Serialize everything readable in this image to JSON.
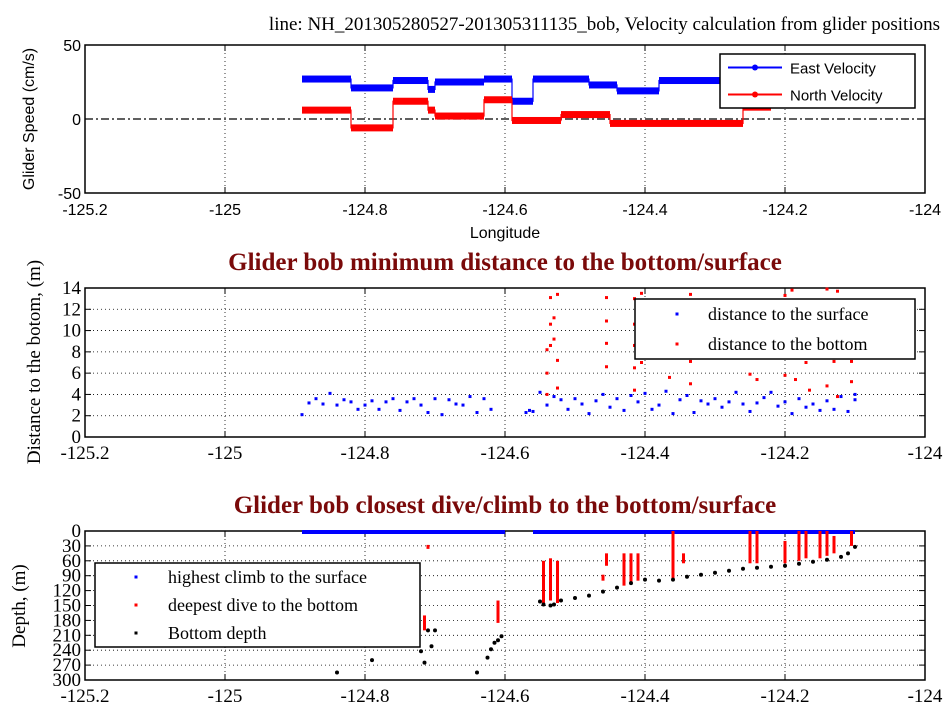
{
  "chart_data": [
    {
      "type": "line",
      "title": "line: NH_201305280527-201305311135_bob, Velocity calculation from glider positions",
      "xlabel": "Longitude",
      "ylabel": "Glider Speed (cm/s)",
      "xlim": [
        -125.2,
        -124
      ],
      "ylim": [
        -50,
        50
      ],
      "xticks": [
        "-125.2",
        "-125",
        "-124.8",
        "-124.6",
        "-124.4",
        "-124.2",
        "-124"
      ],
      "yticks": [
        "-50",
        "0",
        "50"
      ],
      "grid": true,
      "legend_position": "top-right",
      "zero_line": true,
      "series": [
        {
          "name": "East Velocity",
          "color": "#0000ff",
          "steps": [
            [
              -124.89,
              -124.82,
              27
            ],
            [
              -124.82,
              -124.76,
              21
            ],
            [
              -124.76,
              -124.71,
              26
            ],
            [
              -124.71,
              -124.7,
              20
            ],
            [
              -124.7,
              -124.63,
              25
            ],
            [
              -124.63,
              -124.59,
              27
            ],
            [
              -124.59,
              -124.56,
              12
            ],
            [
              -124.56,
              -124.48,
              27
            ],
            [
              -124.48,
              -124.44,
              23
            ],
            [
              -124.44,
              -124.38,
              19
            ],
            [
              -124.38,
              -124.26,
              26
            ]
          ]
        },
        {
          "name": "North Velocity",
          "color": "#ff0000",
          "steps": [
            [
              -124.89,
              -124.82,
              6
            ],
            [
              -124.82,
              -124.76,
              -6
            ],
            [
              -124.76,
              -124.71,
              12
            ],
            [
              -124.71,
              -124.7,
              6
            ],
            [
              -124.7,
              -124.63,
              2
            ],
            [
              -124.63,
              -124.59,
              13
            ],
            [
              -124.59,
              -124.52,
              -1
            ],
            [
              -124.52,
              -124.45,
              3
            ],
            [
              -124.45,
              -124.26,
              -3
            ],
            [
              -124.26,
              -124.22,
              8
            ]
          ]
        }
      ]
    },
    {
      "type": "scatter",
      "title": "Glider bob minimum distance to the bottom/surface",
      "ylabel": "Distance to the botom, (m)",
      "xlim": [
        -125.2,
        -124
      ],
      "ylim": [
        0,
        14
      ],
      "xticks": [
        "-125.2",
        "-125",
        "-124.8",
        "-124.6",
        "-124.4",
        "-124.2",
        "-124"
      ],
      "yticks": [
        "0",
        "2",
        "4",
        "6",
        "8",
        "10",
        "12",
        "14"
      ],
      "grid": true,
      "legend_position": "top-right",
      "series": [
        {
          "name": "distance to the surface",
          "color": "#0000ff",
          "points": [
            [
              -124.89,
              2.1
            ],
            [
              -124.88,
              3.2
            ],
            [
              -124.87,
              3.6
            ],
            [
              -124.86,
              3.1
            ],
            [
              -124.85,
              4.1
            ],
            [
              -124.84,
              3.0
            ],
            [
              -124.83,
              3.5
            ],
            [
              -124.82,
              3.3
            ],
            [
              -124.81,
              2.6
            ],
            [
              -124.8,
              3.0
            ],
            [
              -124.79,
              3.4
            ],
            [
              -124.78,
              2.6
            ],
            [
              -124.77,
              3.3
            ],
            [
              -124.76,
              3.6
            ],
            [
              -124.75,
              2.5
            ],
            [
              -124.74,
              3.3
            ],
            [
              -124.73,
              3.6
            ],
            [
              -124.72,
              3.0
            ],
            [
              -124.71,
              2.3
            ],
            [
              -124.7,
              3.6
            ],
            [
              -124.69,
              2.1
            ],
            [
              -124.68,
              3.5
            ],
            [
              -124.67,
              3.1
            ],
            [
              -124.66,
              3.0
            ],
            [
              -124.65,
              3.8
            ],
            [
              -124.64,
              2.3
            ],
            [
              -124.63,
              3.6
            ],
            [
              -124.62,
              2.6
            ],
            [
              -124.57,
              2.3
            ],
            [
              -124.565,
              2.5
            ],
            [
              -124.56,
              2.4
            ],
            [
              -124.55,
              4.2
            ],
            [
              -124.54,
              3.0
            ],
            [
              -124.53,
              3.8
            ],
            [
              -124.52,
              3.5
            ],
            [
              -124.51,
              2.6
            ],
            [
              -124.5,
              3.6
            ],
            [
              -124.49,
              3.1
            ],
            [
              -124.48,
              2.2
            ],
            [
              -124.47,
              3.4
            ],
            [
              -124.46,
              4.0
            ],
            [
              -124.45,
              2.8
            ],
            [
              -124.44,
              3.6
            ],
            [
              -124.43,
              2.5
            ],
            [
              -124.42,
              3.9
            ],
            [
              -124.41,
              3.3
            ],
            [
              -124.4,
              4.1
            ],
            [
              -124.39,
              2.6
            ],
            [
              -124.38,
              3.0
            ],
            [
              -124.37,
              4.3
            ],
            [
              -124.36,
              2.2
            ],
            [
              -124.35,
              3.5
            ],
            [
              -124.34,
              3.9
            ],
            [
              -124.33,
              2.3
            ],
            [
              -124.32,
              3.4
            ],
            [
              -124.31,
              3.1
            ],
            [
              -124.3,
              3.6
            ],
            [
              -124.29,
              2.8
            ],
            [
              -124.28,
              3.3
            ],
            [
              -124.27,
              4.2
            ],
            [
              -124.26,
              3.1
            ],
            [
              -124.25,
              2.4
            ],
            [
              -124.24,
              3.2
            ],
            [
              -124.23,
              3.7
            ],
            [
              -124.22,
              4.2
            ],
            [
              -124.21,
              2.9
            ],
            [
              -124.2,
              3.3
            ],
            [
              -124.19,
              2.2
            ],
            [
              -124.18,
              3.6
            ],
            [
              -124.17,
              2.8
            ],
            [
              -124.16,
              3.1
            ],
            [
              -124.15,
              2.5
            ],
            [
              -124.14,
              3.4
            ],
            [
              -124.13,
              2.6
            ],
            [
              -124.12,
              3.8
            ],
            [
              -124.11,
              2.4
            ],
            [
              -124.1,
              3.5
            ],
            [
              -124.1,
              4.0
            ]
          ]
        },
        {
          "name": "distance to the bottom",
          "color": "#ff0000",
          "points": [
            [
              -124.54,
              4.0
            ],
            [
              -124.54,
              6.0
            ],
            [
              -124.54,
              8.2
            ],
            [
              -124.535,
              8.6
            ],
            [
              -124.535,
              10.6
            ],
            [
              -124.53,
              11.2
            ],
            [
              -124.535,
              13.1
            ],
            [
              -124.525,
              13.4
            ],
            [
              -124.53,
              9.2
            ],
            [
              -124.525,
              7.2
            ],
            [
              -124.525,
              4.6
            ],
            [
              -124.455,
              6.6
            ],
            [
              -124.455,
              8.8
            ],
            [
              -124.455,
              10.9
            ],
            [
              -124.455,
              13.1
            ],
            [
              -124.415,
              4.4
            ],
            [
              -124.415,
              6.5
            ],
            [
              -124.415,
              8.6
            ],
            [
              -124.415,
              10.6
            ],
            [
              -124.415,
              13.0
            ],
            [
              -124.405,
              13.5
            ],
            [
              -124.405,
              7.0
            ],
            [
              -124.365,
              5.6
            ],
            [
              -124.335,
              5.0
            ],
            [
              -124.335,
              7.1
            ],
            [
              -124.335,
              13.4
            ],
            [
              -124.25,
              5.9
            ],
            [
              -124.24,
              5.4
            ],
            [
              -124.2,
              13.3
            ],
            [
              -124.2,
              5.8
            ],
            [
              -124.19,
              13.8
            ],
            [
              -124.185,
              5.4
            ],
            [
              -124.17,
              7.0
            ],
            [
              -124.165,
              4.4
            ],
            [
              -124.14,
              13.9
            ],
            [
              -124.14,
              4.8
            ],
            [
              -124.13,
              7.1
            ],
            [
              -124.125,
              13.7
            ],
            [
              -124.125,
              3.8
            ],
            [
              -124.105,
              7.1
            ],
            [
              -124.105,
              5.2
            ]
          ]
        }
      ]
    },
    {
      "type": "scatter",
      "title": "Glider bob closest dive/climb to the bottom/surface",
      "ylabel": "Depth, (m)",
      "xlim": [
        -125.2,
        -124
      ],
      "ylim": [
        300,
        0
      ],
      "xticks": [
        "-125.2",
        "-125",
        "-124.8",
        "-124.6",
        "-124.4",
        "-124.2",
        "-124"
      ],
      "yticks": [
        "0",
        "30",
        "60",
        "90",
        "120",
        "150",
        "180",
        "210",
        "240",
        "270",
        "300"
      ],
      "grid": true,
      "legend_position": "middle-left",
      "series": [
        {
          "name": "highest climb to the surface",
          "color": "#0000ff",
          "ranges_x": [
            [
              -124.89,
              -124.6
            ],
            [
              -124.56,
              -124.1
            ]
          ],
          "depth": 0
        },
        {
          "name": "deepest dive to the bottom",
          "color": "#ff0000",
          "segments": [
            [
              -124.71,
              28,
              36
            ],
            [
              -124.715,
              170,
              200
            ],
            [
              -124.61,
              140,
              185
            ],
            [
              -124.545,
              60,
              145
            ],
            [
              -124.535,
              55,
              140
            ],
            [
              -124.525,
              60,
              145
            ],
            [
              -124.46,
              88,
              100
            ],
            [
              -124.455,
              45,
              70
            ],
            [
              -124.43,
              45,
              110
            ],
            [
              -124.42,
              45,
              105
            ],
            [
              -124.41,
              45,
              100
            ],
            [
              -124.36,
              0,
              100
            ],
            [
              -124.345,
              45,
              65
            ],
            [
              -124.25,
              0,
              65
            ],
            [
              -124.24,
              0,
              65
            ],
            [
              -124.2,
              20,
              65
            ],
            [
              -124.18,
              0,
              60
            ],
            [
              -124.17,
              0,
              55
            ],
            [
              -124.15,
              0,
              55
            ],
            [
              -124.14,
              0,
              50
            ],
            [
              -124.13,
              10,
              45
            ],
            [
              -124.105,
              0,
              30
            ]
          ]
        },
        {
          "name": "Bottom depth",
          "color": "#000000",
          "points": [
            [
              -124.84,
              285
            ],
            [
              -124.79,
              260
            ],
            [
              -124.72,
              242
            ],
            [
              -124.715,
              265
            ],
            [
              -124.71,
              200
            ],
            [
              -124.7,
              200
            ],
            [
              -124.705,
              232
            ],
            [
              -124.64,
              285
            ],
            [
              -124.625,
              255
            ],
            [
              -124.62,
              238
            ],
            [
              -124.615,
              225
            ],
            [
              -124.61,
              220
            ],
            [
              -124.605,
              212
            ],
            [
              -124.55,
              142
            ],
            [
              -124.545,
              148
            ],
            [
              -124.535,
              150
            ],
            [
              -124.53,
              148
            ],
            [
              -124.52,
              140
            ],
            [
              -124.5,
              135
            ],
            [
              -124.48,
              130
            ],
            [
              -124.46,
              122
            ],
            [
              -124.44,
              114
            ],
            [
              -124.42,
              105
            ],
            [
              -124.4,
              98
            ],
            [
              -124.38,
              100
            ],
            [
              -124.36,
              98
            ],
            [
              -124.34,
              92
            ],
            [
              -124.32,
              88
            ],
            [
              -124.3,
              84
            ],
            [
              -124.28,
              80
            ],
            [
              -124.26,
              76
            ],
            [
              -124.24,
              74
            ],
            [
              -124.22,
              72
            ],
            [
              -124.2,
              70
            ],
            [
              -124.18,
              66
            ],
            [
              -124.16,
              62
            ],
            [
              -124.14,
              58
            ],
            [
              -124.12,
              52
            ],
            [
              -124.11,
              45
            ],
            [
              -124.1,
              32
            ]
          ]
        }
      ]
    }
  ]
}
